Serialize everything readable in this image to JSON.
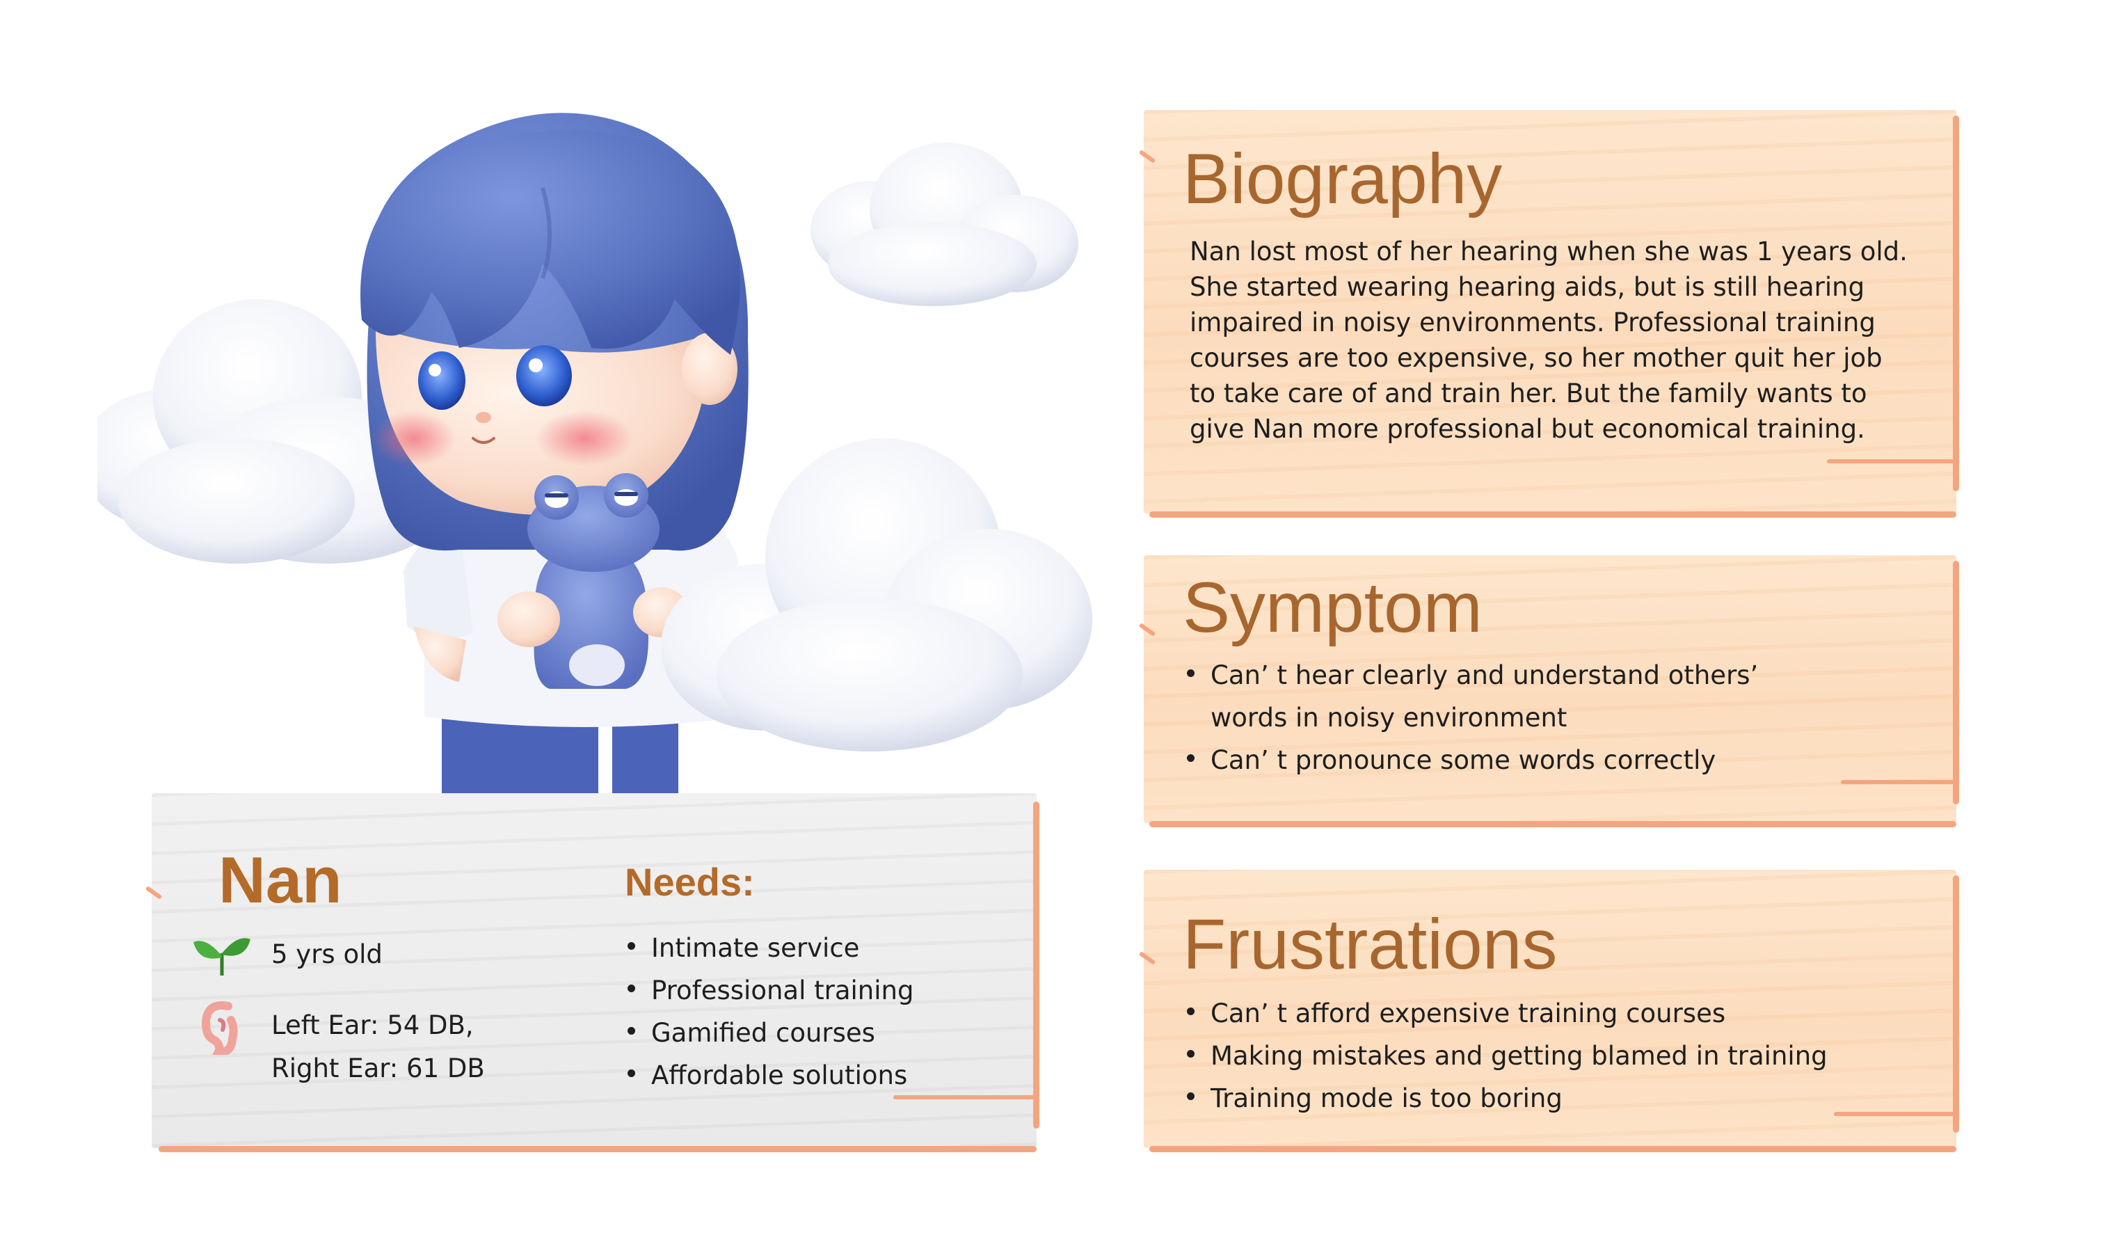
{
  "persona": {
    "name": "Nan",
    "age": "5 yrs old",
    "hearing": [
      "Left Ear: 54 DB,",
      "Right Ear: 61 DB"
    ],
    "needs_title": "Needs:",
    "needs": [
      "Intimate service",
      "Professional training",
      "Gamified courses",
      "Affordable solutions"
    ],
    "icons": {
      "age": "sprout-icon",
      "hearing": "ear-icon"
    }
  },
  "biography": {
    "title": "Biography",
    "lines": [
      "Nan lost most of her hearing when she was 1 years old.",
      "She started wearing hearing aids, but is still hearing",
      "impaired in noisy environments. Professional training",
      "courses are too expensive, so her mother quit her job",
      "to take care of and train her. But the family wants to",
      "give Nan more professional but economical training."
    ]
  },
  "symptom": {
    "title": "Symptom",
    "items": [
      [
        "Can’ t hear clearly and understand others’",
        "words in noisy environment"
      ],
      [
        "Can’ t pronounce some words correctly"
      ]
    ]
  },
  "frustrations": {
    "title": "Frustrations",
    "items": [
      "Can’ t afford expensive training courses",
      "Making mistakes and getting blamed in training",
      "Training mode is too boring"
    ]
  },
  "colors": {
    "heading": "#a8662f",
    "name": "#b46a29",
    "card_wood": "#fde3c8",
    "card_paper": "#ececec",
    "border_accent": "#f4a57f",
    "hair": "#5c78c6",
    "text": "#1e1e1e"
  }
}
